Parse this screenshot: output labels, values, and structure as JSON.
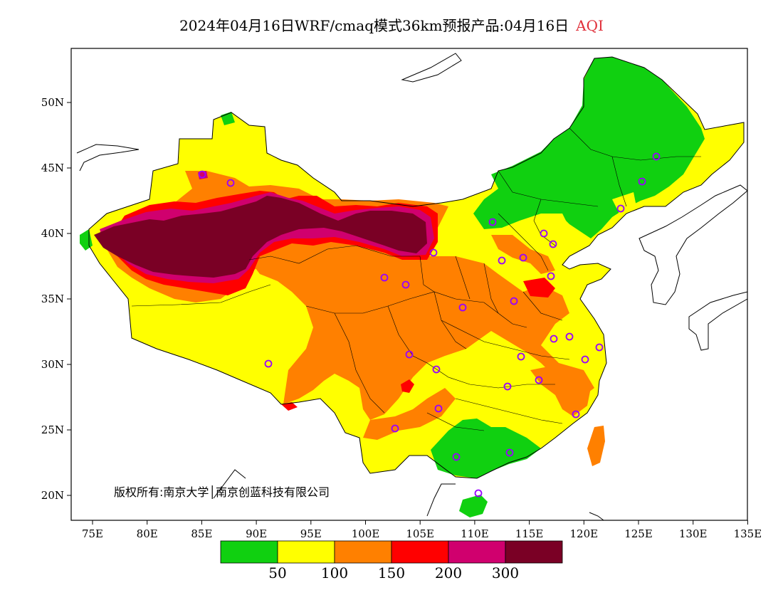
{
  "title": {
    "main": "2024年04月16日WRF/cmaq模式36km预报产品:04月16日",
    "variable": "AQI"
  },
  "map": {
    "lon_ticks": [
      "75E",
      "80E",
      "85E",
      "90E",
      "95E",
      "100E",
      "105E",
      "110E",
      "115E",
      "120E",
      "125E",
      "130E",
      "135E"
    ],
    "lat_ticks": [
      "50N",
      "45N",
      "40N",
      "35N",
      "30N",
      "25N",
      "20N"
    ],
    "copyright_text": "版权所有:南京大学│南京创蓝科技有限公司"
  },
  "colorbar": {
    "colors": [
      "#10d010",
      "#ffff00",
      "#ff8000",
      "#ff0000",
      "#d0006e",
      "#7a0025"
    ],
    "labels": [
      "50",
      "100",
      "150",
      "200",
      "300"
    ]
  },
  "station_marker_color": "#9a00ff"
}
